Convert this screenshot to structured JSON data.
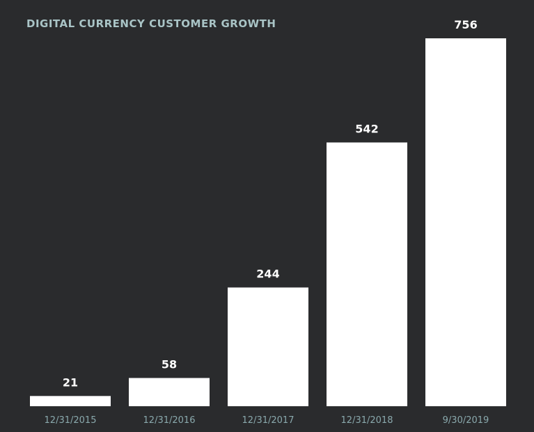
{
  "colors": {
    "background": "#2a2b2d",
    "bar": "#ffffff",
    "title": "#a9c4c6",
    "value_label": "#ffffff",
    "tick_label": "#8aa9ad"
  },
  "chart_data": {
    "type": "bar",
    "title": "DIGITAL CURRENCY CUSTOMER GROWTH",
    "xlabel": "",
    "ylabel": "",
    "categories": [
      "12/31/2015",
      "12/31/2016",
      "12/31/2017",
      "12/31/2018",
      "9/30/2019"
    ],
    "values": [
      21,
      58,
      244,
      542,
      756
    ],
    "data_labels": [
      "21",
      "58",
      "244",
      "542",
      "756"
    ],
    "ylim": [
      0,
      756
    ],
    "grid": false,
    "legend": "none"
  }
}
